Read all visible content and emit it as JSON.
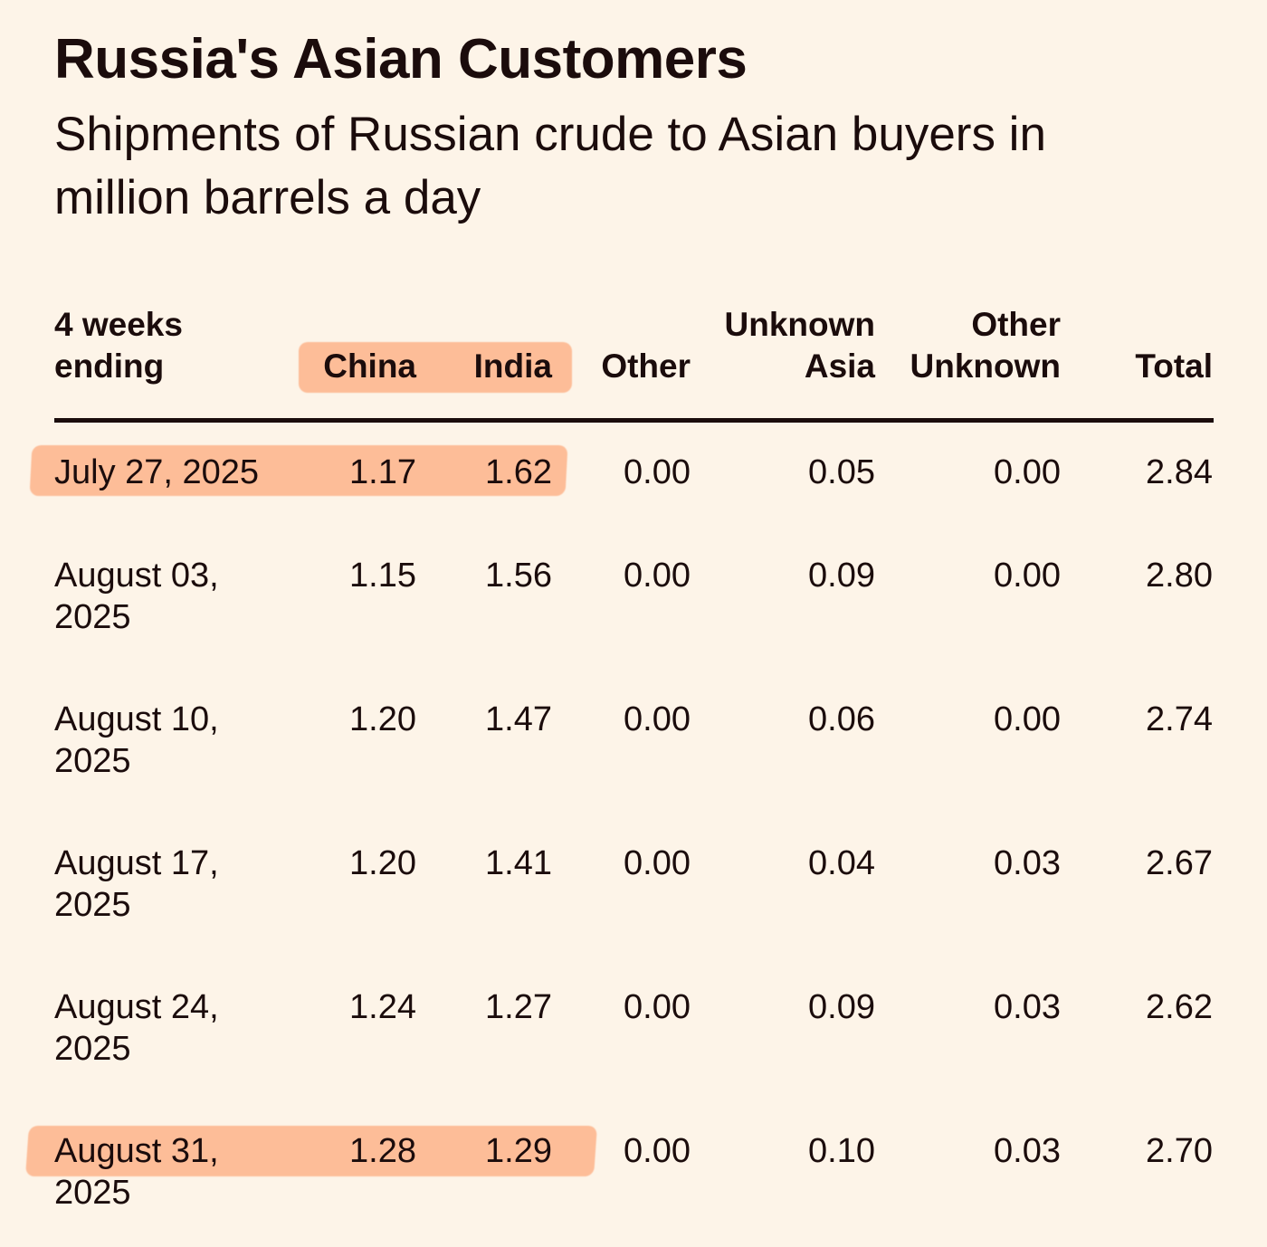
{
  "title": "Russia's Asian Customers",
  "subtitle": "Shipments of Russian crude to Asian buyers in million barrels a day",
  "colors": {
    "background": "#fdf4e8",
    "text": "#1b0c0c",
    "highlight": "#fdbd98"
  },
  "chart_data": {
    "type": "table",
    "title": "Russia's Asian Customers",
    "subtitle": "Shipments of Russian crude to Asian buyers in million barrels a day",
    "columns": [
      {
        "line1": "4 weeks",
        "line2": "ending"
      },
      {
        "line1": "",
        "line2": "China"
      },
      {
        "line1": "",
        "line2": "India"
      },
      {
        "line1": "",
        "line2": "Other"
      },
      {
        "line1": "Unknown",
        "line2": "Asia"
      },
      {
        "line1": "Other",
        "line2": "Unknown"
      },
      {
        "line1": "",
        "line2": "Total"
      }
    ],
    "highlighted_columns": [
      "China",
      "India"
    ],
    "rows": [
      {
        "date_line1": "July 27, 2025",
        "date_line2": "",
        "china": "1.17",
        "india": "1.62",
        "other": "0.00",
        "unknown_asia": "0.05",
        "other_unknown": "0.00",
        "total": "2.84",
        "highlighted": true
      },
      {
        "date_line1": "August 03,",
        "date_line2": "2025",
        "china": "1.15",
        "india": "1.56",
        "other": "0.00",
        "unknown_asia": "0.09",
        "other_unknown": "0.00",
        "total": "2.80",
        "highlighted": false
      },
      {
        "date_line1": "August 10,",
        "date_line2": "2025",
        "china": "1.20",
        "india": "1.47",
        "other": "0.00",
        "unknown_asia": "0.06",
        "other_unknown": "0.00",
        "total": "2.74",
        "highlighted": false
      },
      {
        "date_line1": "August 17,",
        "date_line2": "2025",
        "china": "1.20",
        "india": "1.41",
        "other": "0.00",
        "unknown_asia": "0.04",
        "other_unknown": "0.03",
        "total": "2.67",
        "highlighted": false
      },
      {
        "date_line1": "August 24,",
        "date_line2": "2025",
        "china": "1.24",
        "india": "1.27",
        "other": "0.00",
        "unknown_asia": "0.09",
        "other_unknown": "0.03",
        "total": "2.62",
        "highlighted": false
      },
      {
        "date_line1": "August 31,",
        "date_line2": "2025",
        "china": "1.28",
        "india": "1.29",
        "other": "0.00",
        "unknown_asia": "0.10",
        "other_unknown": "0.03",
        "total": "2.70",
        "highlighted": true
      }
    ]
  }
}
